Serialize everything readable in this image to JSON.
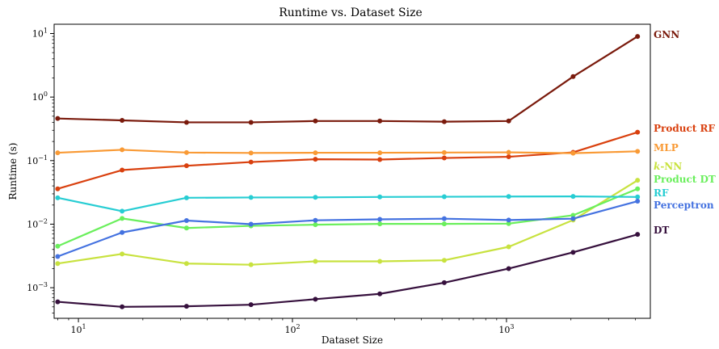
{
  "chart_data": {
    "type": "line",
    "title": "Runtime vs. Dataset Size",
    "xlabel": "Dataset Size",
    "ylabel": "Runtime (s)",
    "xscale": "log",
    "yscale": "log",
    "xlim": [
      7.7,
      4700
    ],
    "ylim": [
      0.00033,
      14
    ],
    "grid": false,
    "legend": "direct labels at right end of lines",
    "x_ticks": [
      {
        "value": 10,
        "base": "10",
        "exp": "1"
      },
      {
        "value": 100,
        "base": "10",
        "exp": "2"
      },
      {
        "value": 1000,
        "base": "10",
        "exp": "3"
      }
    ],
    "y_ticks": [
      {
        "value": 0.001,
        "base": "10",
        "exp": "−3"
      },
      {
        "value": 0.01,
        "base": "10",
        "exp": "−2"
      },
      {
        "value": 0.1,
        "base": "10",
        "exp": "−1"
      },
      {
        "value": 1,
        "base": "10",
        "exp": "0"
      },
      {
        "value": 10,
        "base": "10",
        "exp": "1"
      }
    ],
    "x": [
      8,
      16,
      32,
      64,
      128,
      256,
      512,
      1024,
      2048,
      4096
    ],
    "series": [
      {
        "name": "GNN",
        "color": "#7a1a0c",
        "values": [
          0.46,
          0.43,
          0.4,
          0.4,
          0.42,
          0.42,
          0.41,
          0.42,
          2.1,
          9.0
        ]
      },
      {
        "name": "Product RF",
        "color": "#d9400e",
        "values": [
          0.036,
          0.071,
          0.083,
          0.095,
          0.105,
          0.104,
          0.11,
          0.115,
          0.135,
          0.28
        ]
      },
      {
        "name": "MLP",
        "color": "#f99a35",
        "values": [
          0.133,
          0.148,
          0.134,
          0.132,
          0.133,
          0.133,
          0.134,
          0.135,
          0.131,
          0.14
        ]
      },
      {
        "name": "k-NN",
        "color": "#c8e23f",
        "values": [
          0.0024,
          0.0034,
          0.0024,
          0.0023,
          0.0026,
          0.0026,
          0.0027,
          0.0044,
          0.0116,
          0.049
        ]
      },
      {
        "name": "Product DT",
        "color": "#6aef5c",
        "values": [
          0.0045,
          0.0123,
          0.0087,
          0.0094,
          0.0098,
          0.0101,
          0.0101,
          0.0102,
          0.0138,
          0.036
        ]
      },
      {
        "name": "RF",
        "color": "#27cdd3",
        "values": [
          0.026,
          0.016,
          0.026,
          0.0263,
          0.0264,
          0.0268,
          0.027,
          0.0272,
          0.0273,
          0.0268
        ]
      },
      {
        "name": "Perceptron",
        "color": "#4472e0",
        "values": [
          0.0031,
          0.0074,
          0.0114,
          0.01,
          0.0115,
          0.0119,
          0.0122,
          0.0116,
          0.0122,
          0.023
        ]
      },
      {
        "name": "DT",
        "color": "#36103d",
        "values": [
          0.0006,
          0.0005,
          0.00051,
          0.00054,
          0.00066,
          0.0008,
          0.0012,
          0.002,
          0.0036,
          0.0069
        ]
      }
    ],
    "label_offsets_note": ""
  }
}
